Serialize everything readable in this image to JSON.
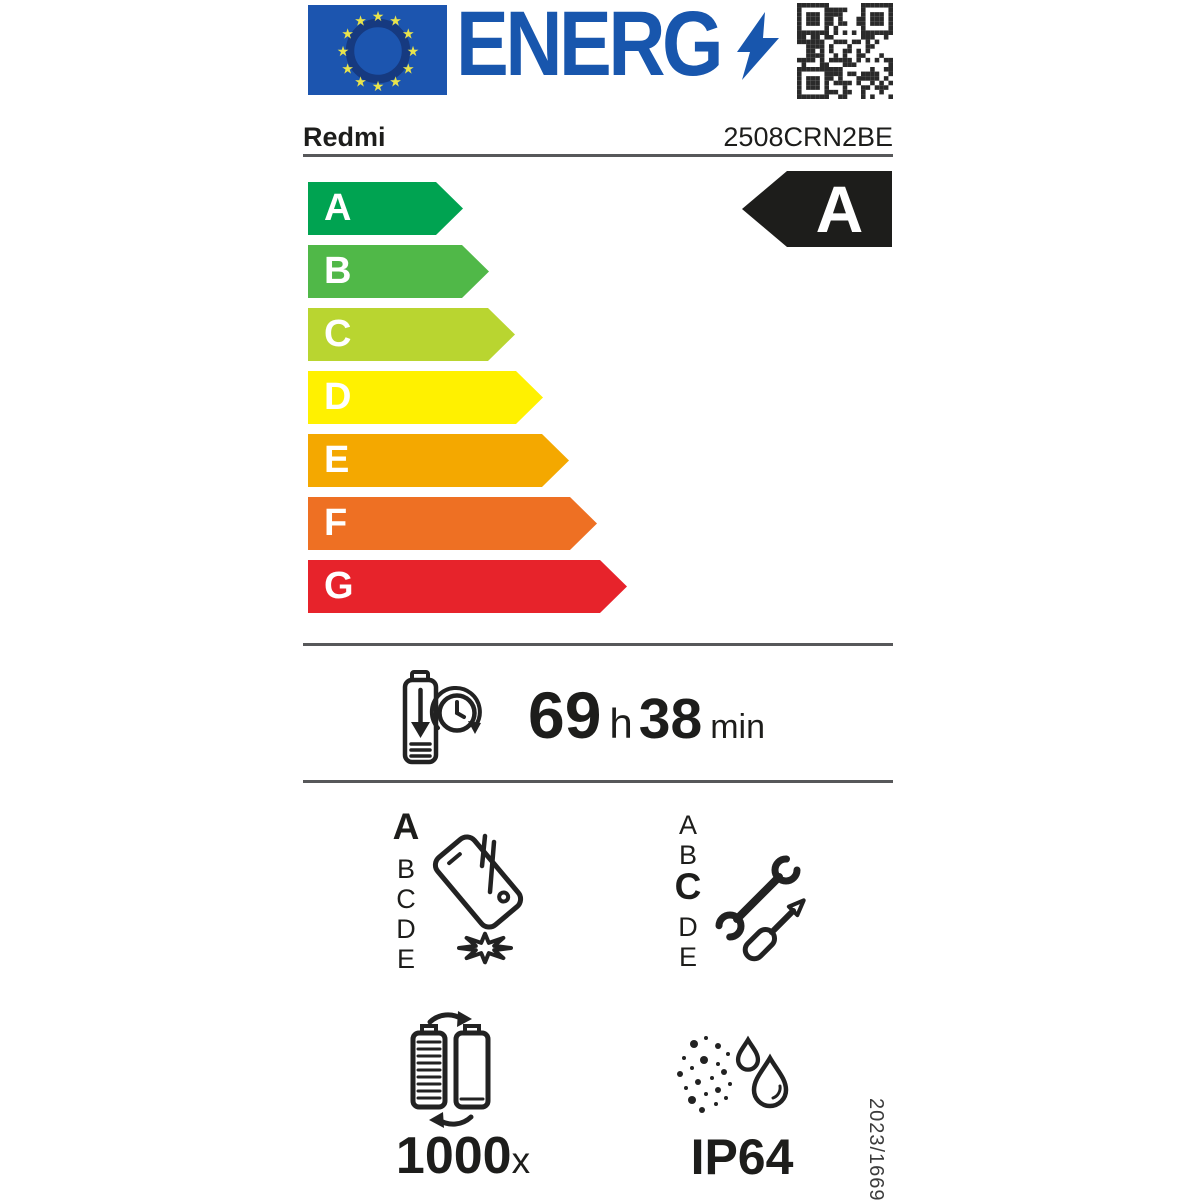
{
  "header": {
    "logo_text": "ENERG",
    "logo_color": "#1856ad",
    "brand": "Redmi",
    "model": "2508CRN2BE"
  },
  "energy_scale": {
    "classes": [
      {
        "label": "A",
        "color": "#00a351"
      },
      {
        "label": "B",
        "color": "#50b848"
      },
      {
        "label": "C",
        "color": "#b9d530"
      },
      {
        "label": "D",
        "color": "#fff100"
      },
      {
        "label": "E",
        "color": "#f4a800"
      },
      {
        "label": "F",
        "color": "#ee7023"
      },
      {
        "label": "G",
        "color": "#e7232b"
      }
    ],
    "rating": {
      "label": "A",
      "color": "#1d1d1b"
    }
  },
  "battery_endurance": {
    "hours": "69",
    "hours_unit": "h",
    "minutes": "38",
    "minutes_unit": "min"
  },
  "drop_resistance": {
    "scale": [
      "A",
      "B",
      "C",
      "D",
      "E"
    ],
    "rating": "A"
  },
  "repairability": {
    "scale": [
      "A",
      "B",
      "C",
      "D",
      "E"
    ],
    "rating": "C"
  },
  "battery_cycles": {
    "value": "1000",
    "unit": "x"
  },
  "ingress_protection": {
    "value": "IP64"
  },
  "regulation_number": "2023/1669"
}
